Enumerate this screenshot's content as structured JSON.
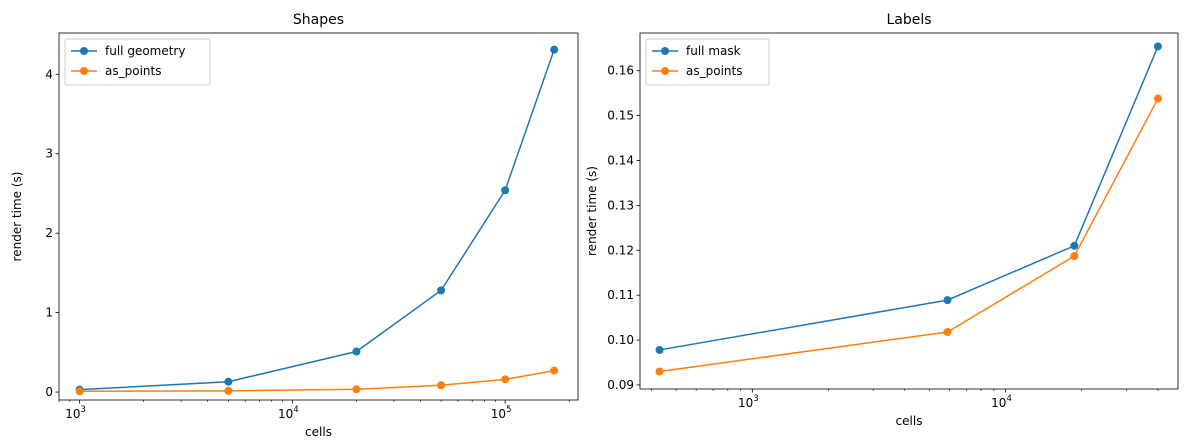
{
  "chart_data": [
    {
      "type": "line",
      "title": "Shapes",
      "xlabel": "cells",
      "ylabel": "render time (s)",
      "xscale": "log",
      "xlim": [
        800,
        220000
      ],
      "ylim": [
        -0.1,
        4.52
      ],
      "xticks": [
        1000,
        10000,
        100000
      ],
      "xtick_labels": [
        {
          "base": "10",
          "exp": "3"
        },
        {
          "base": "10",
          "exp": "4"
        },
        {
          "base": "10",
          "exp": "5"
        }
      ],
      "yticks": [
        0,
        1,
        2,
        3,
        4
      ],
      "ytick_labels": [
        "0",
        "1",
        "2",
        "3",
        "4"
      ],
      "legend": "upper-left",
      "grid": false,
      "series": [
        {
          "name": "full geometry",
          "color": "#1f77b4",
          "x": [
            1000,
            5000,
            20000,
            50000,
            100000,
            170000
          ],
          "y": [
            0.03,
            0.13,
            0.51,
            1.28,
            2.54,
            4.31
          ]
        },
        {
          "name": "as_points",
          "color": "#ff7f0e",
          "x": [
            1000,
            5000,
            20000,
            50000,
            100000,
            170000
          ],
          "y": [
            0.01,
            0.015,
            0.035,
            0.085,
            0.16,
            0.27
          ]
        }
      ]
    },
    {
      "type": "line",
      "title": "Labels",
      "xlabel": "cells",
      "ylabel": "render time (s)",
      "xscale": "log",
      "xlim": [
        360,
        48000
      ],
      "ylim": [
        0.0891,
        0.1684
      ],
      "xticks": [
        1000,
        10000
      ],
      "xtick_labels": [
        {
          "base": "10",
          "exp": "3"
        },
        {
          "base": "10",
          "exp": "4"
        }
      ],
      "yticks": [
        0.09,
        0.1,
        0.11,
        0.12,
        0.13,
        0.14,
        0.15,
        0.16
      ],
      "ytick_labels": [
        "0.09",
        "0.10",
        "0.11",
        "0.12",
        "0.13",
        "0.14",
        "0.15",
        "0.16"
      ],
      "legend": "upper-left",
      "grid": false,
      "series": [
        {
          "name": "full mask",
          "color": "#1f77b4",
          "x": [
            430,
            5900,
            18700,
            40000
          ],
          "y": [
            0.0978,
            0.1089,
            0.121,
            0.1654
          ]
        },
        {
          "name": "as_points",
          "color": "#ff7f0e",
          "x": [
            430,
            5900,
            18700,
            40000
          ],
          "y": [
            0.093,
            0.1018,
            0.1187,
            0.1538
          ]
        }
      ]
    }
  ]
}
